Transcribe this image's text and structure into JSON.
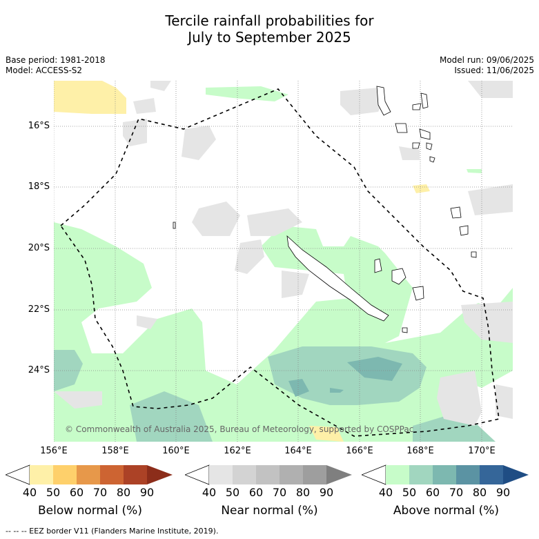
{
  "title_line1": "Tercile rainfall probabilities for",
  "title_line2": "July to September 2025",
  "base_period": "Base period: 1981-2018",
  "model": "Model: ACCESS-S2",
  "model_run": "Model run: 09/06/2025",
  "issued": "Issued: 11/06/2025",
  "lat_ticks": [
    "16°S",
    "18°S",
    "20°S",
    "22°S",
    "24°S"
  ],
  "lon_ticks": [
    "156°E",
    "158°E",
    "160°E",
    "162°E",
    "164°E",
    "166°E",
    "168°E",
    "170°E"
  ],
  "copyright": "© Commonwealth of Australia 2025, Bureau of Meteorology, supported by COSPPac",
  "footnote": "--  --  -- EEZ border V11 (Flanders Marine Institute, 2019).",
  "colorbars": [
    {
      "label": "Below normal (%)",
      "ticks": [
        "40",
        "50",
        "60",
        "70",
        "80",
        "90"
      ],
      "colors": [
        "#fef0a8",
        "#fed06b",
        "#e7984a",
        "#cd6432",
        "#ac4226",
        "#8c2d1a"
      ]
    },
    {
      "label": "Near normal (%)",
      "ticks": [
        "40",
        "50",
        "60",
        "70",
        "80",
        "90"
      ],
      "colors": [
        "#e5e5e5",
        "#d3d3d3",
        "#c2c2c2",
        "#b0b0b0",
        "#9e9e9e",
        "#7f7f7f"
      ]
    },
    {
      "label": "Above normal (%)",
      "ticks": [
        "40",
        "50",
        "60",
        "70",
        "80",
        "90"
      ],
      "colors": [
        "#c7fcc9",
        "#a1d6bf",
        "#7db8b0",
        "#5b93a3",
        "#356699",
        "#1f4d84"
      ]
    }
  ]
}
